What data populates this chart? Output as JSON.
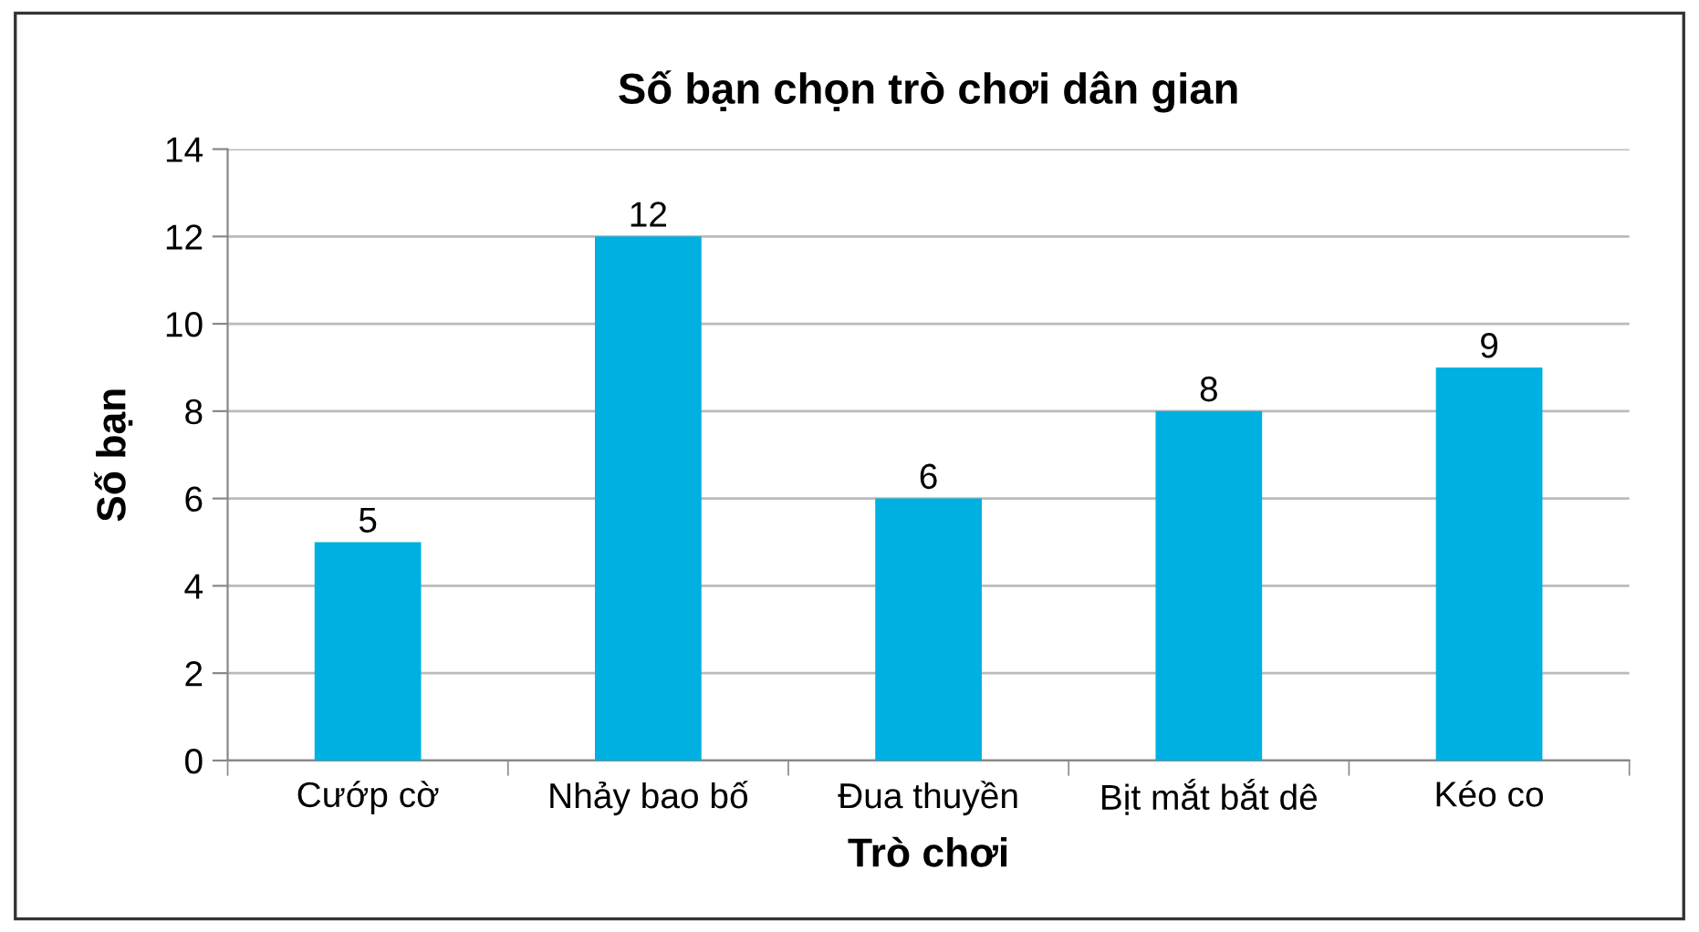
{
  "chart_data": {
    "type": "bar",
    "title": "Số bạn chọn trò chơi dân gian",
    "xlabel": "Trò chơi",
    "ylabel": "Số bạn",
    "categories": [
      "Cướp cờ",
      "Nhảy bao bố",
      "Đua thuyền",
      "Bịt mắt bắt dê",
      "Kéo co"
    ],
    "values": [
      5,
      12,
      6,
      8,
      9
    ],
    "color": "#00b0e0",
    "ylim": [
      0,
      14
    ],
    "yticks": [
      0,
      2,
      4,
      6,
      8,
      10,
      12,
      14
    ],
    "grid": "y",
    "data_labels": true
  }
}
